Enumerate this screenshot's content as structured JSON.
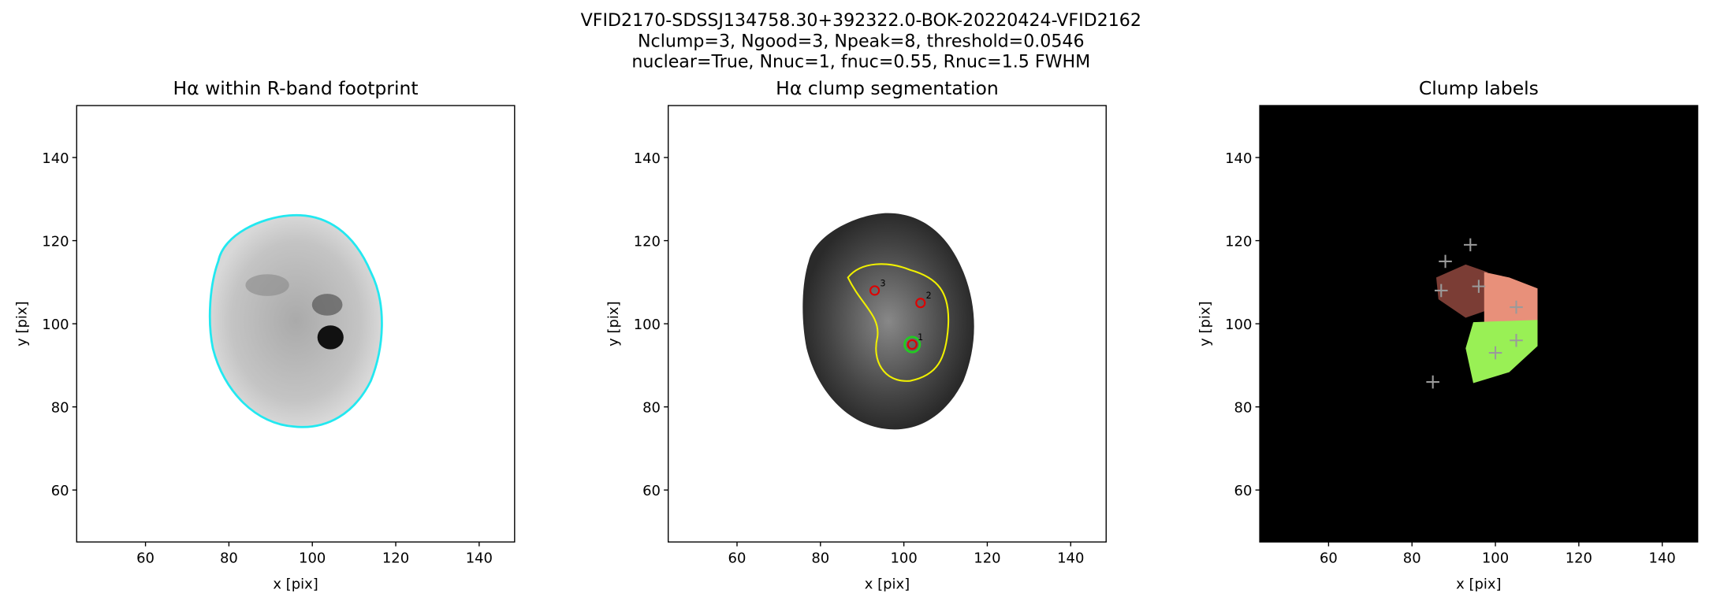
{
  "suptitle": [
    "VFID2170-SDSSJ134758.30+392322.0-BOK-20220424-VFID2162",
    "Nclump=3, Ngood=3, Npeak=8, threshold=0.0546",
    "nuclear=True, Nnuc=1, fnuc=0.55, Rnuc=1.5 FWHM"
  ],
  "chart_data": [
    {
      "type": "image",
      "title": "Hα within R-band footprint",
      "xlabel": "x [pix]",
      "ylabel": "y [pix]",
      "xlim": [
        43.5,
        148.5
      ],
      "ylim": [
        47.5,
        152.5
      ],
      "xticks": [
        60,
        80,
        100,
        120,
        140
      ],
      "yticks": [
        60,
        80,
        100,
        120,
        140
      ]
    },
    {
      "type": "image",
      "title": "Hα clump segmentation",
      "xlabel": "x [pix]",
      "ylabel": "y [pix]",
      "xlim": [
        43.5,
        148.5
      ],
      "ylim": [
        47.5,
        152.5
      ],
      "xticks": [
        60,
        80,
        100,
        120,
        140
      ],
      "yticks": [
        60,
        80,
        100,
        120,
        140
      ],
      "clumps": {
        "x": [
          102,
          104,
          93
        ],
        "y": [
          95,
          105,
          108
        ],
        "labels": [
          "1",
          "2",
          "3"
        ],
        "color": "#e00000"
      },
      "nucleus": {
        "x": [
          102
        ],
        "y": [
          95
        ],
        "color": "#22cc22"
      }
    },
    {
      "type": "image",
      "title": "Clump labels",
      "xlabel": "x [pix]",
      "ylabel": "y [pix]",
      "xlim": [
        43.5,
        148.5
      ],
      "ylim": [
        47.5,
        152.5
      ],
      "xticks": [
        60,
        80,
        100,
        120,
        140
      ],
      "yticks": [
        60,
        80,
        100,
        120,
        140
      ],
      "peaks": {
        "x": [
          88,
          94,
          87,
          96,
          105,
          100,
          105,
          85
        ],
        "y": [
          115,
          119,
          108,
          109,
          104,
          93,
          96,
          86
        ],
        "color": "#9a9a9a"
      }
    }
  ]
}
